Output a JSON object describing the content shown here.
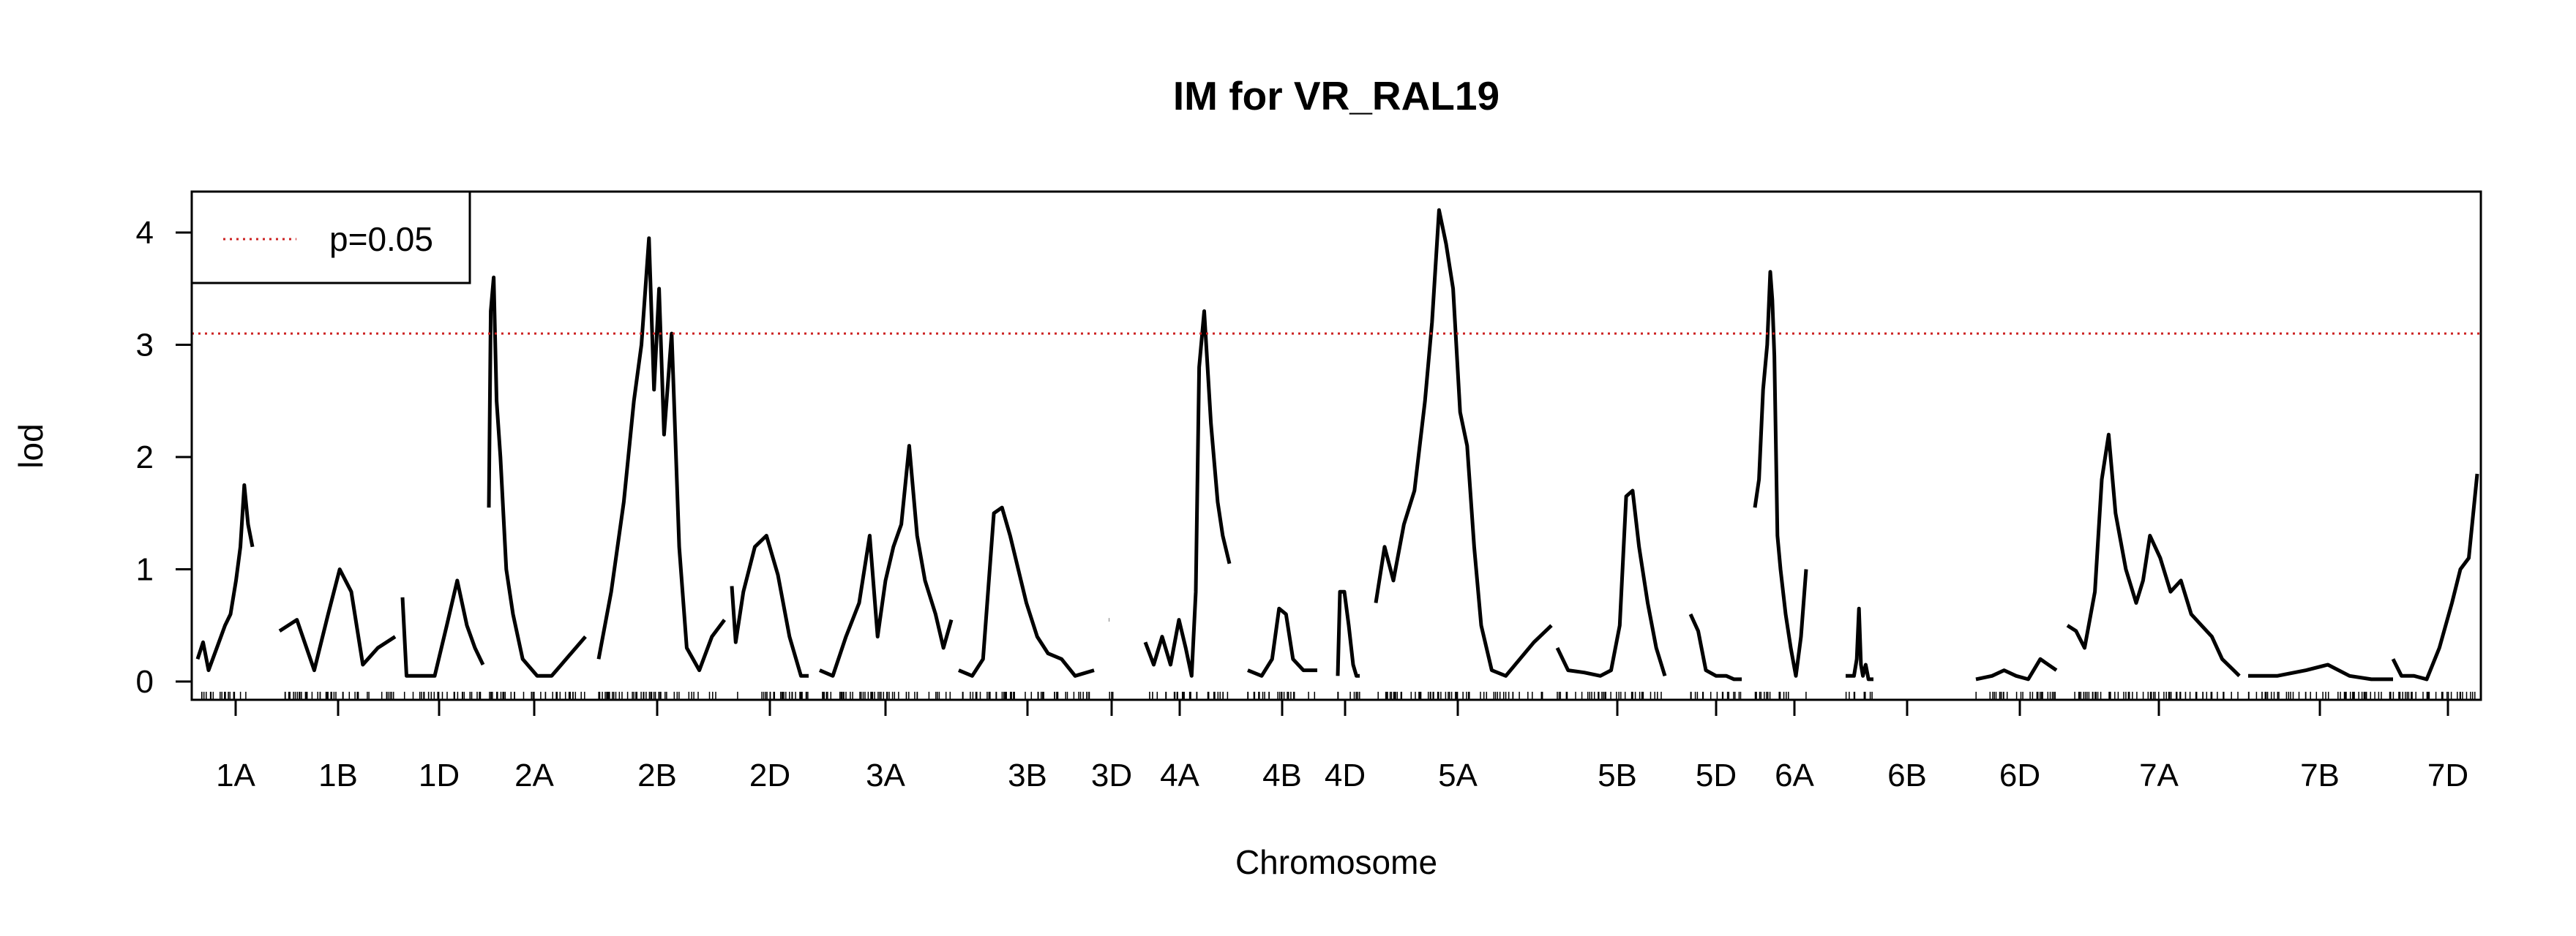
{
  "chart_data": {
    "type": "line",
    "title": "IM for VR_RAL19",
    "xlabel": "Chromosome",
    "ylabel": "lod",
    "ylim": [
      -0.15,
      4.3
    ],
    "yticks": [
      "0",
      "1",
      "2",
      "3",
      "4"
    ],
    "threshold": {
      "label": "p=0.05",
      "value": 3.1,
      "color": "#cc2222",
      "style": "dotted"
    },
    "legend": {
      "placement": "top-left",
      "entries": [
        "p=0.05"
      ]
    },
    "series_color": "#000000",
    "chromosomes": [
      {
        "name": "1A",
        "x": [
          0,
          0.1,
          0.2,
          0.35,
          0.5,
          0.6,
          0.7,
          0.78,
          0.85,
          0.92,
          1.0
        ],
        "lod": [
          0.2,
          0.35,
          0.1,
          0.3,
          0.5,
          0.6,
          0.9,
          1.2,
          1.75,
          1.4,
          1.2
        ]
      },
      {
        "name": "1B",
        "x": [
          0,
          0.15,
          0.3,
          0.42,
          0.52,
          0.62,
          0.72,
          0.85,
          1.0
        ],
        "lod": [
          0.45,
          0.55,
          0.1,
          0.6,
          1.0,
          0.8,
          0.15,
          0.3,
          0.4
        ]
      },
      {
        "name": "1D",
        "x": [
          0,
          0.05,
          0.2,
          0.4,
          0.55,
          0.68,
          0.8,
          0.9,
          1.0
        ],
        "lod": [
          0.75,
          0.05,
          0.05,
          0.05,
          0.5,
          0.9,
          0.5,
          0.3,
          0.15
        ]
      },
      {
        "name": "2A",
        "x": [
          0,
          0.02,
          0.05,
          0.08,
          0.12,
          0.18,
          0.25,
          0.35,
          0.5,
          0.65,
          0.8,
          1.0
        ],
        "lod": [
          1.55,
          3.3,
          3.6,
          2.5,
          2.0,
          1.0,
          0.6,
          0.2,
          0.05,
          0.05,
          0.2,
          0.4
        ]
      },
      {
        "name": "2B",
        "x": [
          0,
          0.1,
          0.2,
          0.28,
          0.34,
          0.4,
          0.44,
          0.48,
          0.52,
          0.58,
          0.64,
          0.7,
          0.8,
          0.9,
          1.0
        ],
        "lod": [
          0.2,
          0.8,
          1.6,
          2.5,
          3.0,
          3.95,
          2.6,
          3.5,
          2.2,
          3.1,
          1.2,
          0.3,
          0.1,
          0.4,
          0.55
        ]
      },
      {
        "name": "2D",
        "x": [
          0,
          0.05,
          0.15,
          0.3,
          0.45,
          0.6,
          0.75,
          0.9,
          1.0
        ],
        "lod": [
          0.85,
          0.35,
          0.8,
          1.2,
          1.3,
          0.95,
          0.4,
          0.05,
          0.05
        ]
      },
      {
        "name": "3A",
        "x": [
          0,
          0.1,
          0.2,
          0.3,
          0.38,
          0.44,
          0.5,
          0.56,
          0.62,
          0.68,
          0.74,
          0.8,
          0.88,
          0.94,
          1.0
        ],
        "lod": [
          0.1,
          0.05,
          0.4,
          0.7,
          1.3,
          0.4,
          0.9,
          1.2,
          1.4,
          2.1,
          1.3,
          0.9,
          0.6,
          0.3,
          0.55
        ]
      },
      {
        "name": "3B",
        "x": [
          0,
          0.1,
          0.18,
          0.26,
          0.32,
          0.38,
          0.44,
          0.5,
          0.58,
          0.66,
          0.76,
          0.86,
          1.0
        ],
        "lod": [
          0.1,
          0.05,
          0.2,
          1.5,
          1.55,
          1.3,
          1.0,
          0.7,
          0.4,
          0.25,
          0.2,
          0.05,
          0.1
        ]
      },
      {
        "name": "3D",
        "x": [
          0,
          0.05
        ],
        "lod": [
          0.55,
          0.55
        ]
      },
      {
        "name": "4A",
        "x": [
          0,
          0.1,
          0.2,
          0.3,
          0.4,
          0.48,
          0.55,
          0.6,
          0.64,
          0.7,
          0.78,
          0.86,
          0.92,
          1.0
        ],
        "lod": [
          0.35,
          0.15,
          0.4,
          0.15,
          0.55,
          0.3,
          0.05,
          0.8,
          2.8,
          3.3,
          2.3,
          1.6,
          1.3,
          1.05
        ]
      },
      {
        "name": "4B",
        "x": [
          0,
          0.2,
          0.35,
          0.45,
          0.55,
          0.65,
          0.8,
          1.0
        ],
        "lod": [
          0.1,
          0.05,
          0.2,
          0.65,
          0.6,
          0.2,
          0.1,
          0.1
        ]
      },
      {
        "name": "4D",
        "x": [
          0,
          0.1,
          0.3,
          0.5,
          0.7,
          0.85,
          1.0
        ],
        "lod": [
          0.05,
          0.8,
          0.8,
          0.5,
          0.15,
          0.05,
          0.05
        ]
      },
      {
        "name": "5A",
        "x": [
          0,
          0.05,
          0.1,
          0.16,
          0.22,
          0.28,
          0.32,
          0.36,
          0.4,
          0.44,
          0.48,
          0.52,
          0.56,
          0.6,
          0.66,
          0.74,
          0.82,
          0.9,
          1.0
        ],
        "lod": [
          0.7,
          1.2,
          0.9,
          1.4,
          1.7,
          2.5,
          3.2,
          4.2,
          3.9,
          3.5,
          2.4,
          2.1,
          1.2,
          0.5,
          0.1,
          0.05,
          0.2,
          0.35,
          0.5
        ]
      },
      {
        "name": "5B",
        "x": [
          0,
          0.1,
          0.25,
          0.4,
          0.5,
          0.58,
          0.64,
          0.7,
          0.76,
          0.84,
          0.92,
          1.0
        ],
        "lod": [
          0.3,
          0.1,
          0.08,
          0.05,
          0.1,
          0.5,
          1.65,
          1.7,
          1.2,
          0.7,
          0.3,
          0.05
        ]
      },
      {
        "name": "5D",
        "x": [
          0,
          0.15,
          0.3,
          0.5,
          0.7,
          0.85,
          1.0
        ],
        "lod": [
          0.6,
          0.45,
          0.1,
          0.05,
          0.05,
          0.02,
          0.02
        ]
      },
      {
        "name": "6A",
        "x": [
          0,
          0.08,
          0.16,
          0.24,
          0.3,
          0.34,
          0.38,
          0.44,
          0.5,
          0.6,
          0.7,
          0.8,
          0.9,
          1.0
        ],
        "lod": [
          1.55,
          1.8,
          2.6,
          3.0,
          3.65,
          3.4,
          2.9,
          1.3,
          1.0,
          0.6,
          0.3,
          0.05,
          0.4,
          1.0
        ]
      },
      {
        "name": "6B",
        "x": [
          0,
          0.15,
          0.3,
          0.4,
          0.48,
          0.55,
          0.62,
          0.72,
          0.82,
          1.0
        ],
        "lod": [
          0.05,
          0.05,
          0.05,
          0.2,
          0.65,
          0.15,
          0.05,
          0.15,
          0.02,
          0.02
        ]
      },
      {
        "name": "6D",
        "x": [
          0,
          0.2,
          0.35,
          0.5,
          0.65,
          0.8,
          0.9,
          1.0
        ],
        "lod": [
          0.02,
          0.05,
          0.1,
          0.05,
          0.02,
          0.2,
          0.15,
          0.1
        ]
      },
      {
        "name": "7A",
        "x": [
          0,
          0.05,
          0.1,
          0.16,
          0.2,
          0.24,
          0.28,
          0.34,
          0.4,
          0.44,
          0.48,
          0.54,
          0.6,
          0.66,
          0.72,
          0.78,
          0.84,
          0.9,
          1.0
        ],
        "lod": [
          0.5,
          0.45,
          0.3,
          0.8,
          1.8,
          2.2,
          1.5,
          1.0,
          0.7,
          0.9,
          1.3,
          1.1,
          0.8,
          0.9,
          0.6,
          0.5,
          0.4,
          0.2,
          0.05
        ]
      },
      {
        "name": "7B",
        "x": [
          0,
          0.2,
          0.4,
          0.55,
          0.7,
          0.85,
          1.0
        ],
        "lod": [
          0.05,
          0.05,
          0.1,
          0.15,
          0.05,
          0.02,
          0.02
        ]
      },
      {
        "name": "7D",
        "x": [
          0,
          0.1,
          0.25,
          0.4,
          0.55,
          0.7,
          0.8,
          0.9,
          1.0
        ],
        "lod": [
          0.2,
          0.05,
          0.05,
          0.02,
          0.3,
          0.7,
          1.0,
          1.1,
          1.85
        ]
      }
    ]
  }
}
